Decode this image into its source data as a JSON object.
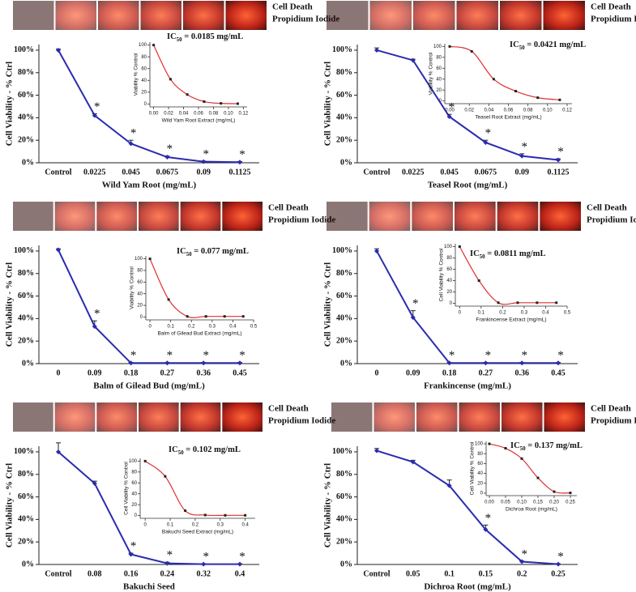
{
  "strip_label": [
    "Cell Death",
    "Propidium Iodide"
  ],
  "chart_data": [
    {
      "type": "line",
      "ylabel": "Cell Viability - % Ctrl",
      "xlabel": "Wild Yam Root (mg/mL)",
      "color": "#2b2bb0",
      "categories": [
        "Control",
        "0.0225",
        "0.045",
        "0.0675",
        "0.09",
        "0.1125"
      ],
      "values": [
        100,
        42,
        17,
        5,
        1,
        0.5
      ],
      "errors": [
        1,
        1.5,
        3,
        1,
        0.5,
        0.5
      ],
      "significance": [
        null,
        "*",
        "*",
        "*",
        "*",
        "*"
      ],
      "ylim": [
        0,
        105
      ],
      "yticks": [
        {
          "value": 0,
          "label": "0%"
        },
        {
          "value": 20,
          "label": "20%"
        },
        {
          "value": 40,
          "label": "40%"
        },
        {
          "value": 60,
          "label": "60%"
        },
        {
          "value": 80,
          "label": "80%"
        },
        {
          "value": 100,
          "label": "100%"
        }
      ],
      "inset": {
        "type": "line",
        "ylabel": "Viability % Control",
        "xlabel": "Wild Yam Root Extract (mg/mL)",
        "ic50_prefix": "IC",
        "ic50_sub": "50",
        "ic50_text": " = 0.0185 mg/mL",
        "color": "#e03030",
        "x": [
          0,
          0.0225,
          0.045,
          0.0675,
          0.09,
          0.1125
        ],
        "values": [
          100,
          42,
          16,
          4,
          1,
          0.5
        ],
        "xlim": [
          -0.005,
          0.125
        ],
        "ylim": [
          -5,
          105
        ],
        "xticks": [
          {
            "value": 0,
            "label": "0.00"
          },
          {
            "value": 0.02,
            "label": "0.02"
          },
          {
            "value": 0.04,
            "label": "0.04"
          },
          {
            "value": 0.06,
            "label": "0.06"
          },
          {
            "value": 0.08,
            "label": "0.08"
          },
          {
            "value": 0.1,
            "label": "0.10"
          },
          {
            "value": 0.12,
            "label": "0.12"
          }
        ],
        "yticks": [
          0,
          20,
          40,
          60,
          80,
          100
        ]
      }
    },
    {
      "type": "line",
      "ylabel": "Cell Viability - % Ctrl",
      "xlabel": "Teasel Root (mg/mL)",
      "color": "#2b2bb0",
      "categories": [
        "Control",
        "0.0225",
        "0.045",
        "0.0675",
        "0.09",
        "0.1125"
      ],
      "values": [
        100,
        91,
        41,
        18,
        6,
        2.5
      ],
      "errors": [
        2,
        1,
        2,
        2,
        2,
        1
      ],
      "significance": [
        null,
        null,
        "*",
        "*",
        "*",
        "*"
      ],
      "ylim": [
        0,
        105
      ],
      "yticks": [
        {
          "value": 0,
          "label": "0%"
        },
        {
          "value": 20,
          "label": "20%"
        },
        {
          "value": 40,
          "label": "40%"
        },
        {
          "value": 60,
          "label": "60%"
        },
        {
          "value": 80,
          "label": "80%"
        },
        {
          "value": 100,
          "label": "100%"
        }
      ],
      "inset": {
        "type": "line",
        "ylabel": "Viability % Control",
        "xlabel": "Teasel Root Extract (mg/mL)",
        "ic50_prefix": "IC",
        "ic50_sub": "50",
        "ic50_text": " = 0.0421 mg/mL",
        "color": "#e03030",
        "x": [
          0,
          0.0225,
          0.045,
          0.0675,
          0.09,
          0.1125
        ],
        "values": [
          100,
          91,
          40,
          18,
          6,
          2
        ],
        "xlim": [
          -0.005,
          0.125
        ],
        "ylim": [
          -5,
          105
        ],
        "xticks": [
          {
            "value": 0,
            "label": "0.00"
          },
          {
            "value": 0.02,
            "label": "0.02"
          },
          {
            "value": 0.04,
            "label": "0.04"
          },
          {
            "value": 0.06,
            "label": "0.06"
          },
          {
            "value": 0.08,
            "label": "0.08"
          },
          {
            "value": 0.1,
            "label": "0.10"
          },
          {
            "value": 0.12,
            "label": "0.12"
          }
        ],
        "yticks": [
          0,
          20,
          40,
          60,
          80,
          100
        ]
      }
    },
    {
      "type": "line",
      "ylabel": "Cell Viability - % Ctrl",
      "xlabel": "Balm of Gilead Bud (mg/mL)",
      "color": "#2b2bb0",
      "categories": [
        "0",
        "0.09",
        "0.18",
        "0.27",
        "0.36",
        "0.45"
      ],
      "values": [
        101,
        33,
        0.5,
        0.5,
        0.5,
        0.5
      ],
      "errors": [
        1,
        5,
        0.5,
        0.5,
        0.5,
        0.5
      ],
      "significance": [
        null,
        "*",
        "*",
        "*",
        "*",
        "*"
      ],
      "ylim": [
        0,
        105
      ],
      "yticks": [
        {
          "value": 0,
          "label": "0%"
        },
        {
          "value": 20,
          "label": "20%"
        },
        {
          "value": 40,
          "label": "40%"
        },
        {
          "value": 60,
          "label": "60%"
        },
        {
          "value": 80,
          "label": "80%"
        },
        {
          "value": 100,
          "label": "100%"
        }
      ],
      "inset": {
        "type": "line",
        "ylabel": "Viability % Control",
        "xlabel": "Balm of Gilead Bud Extract (mg/mL)",
        "ic50_prefix": "IC",
        "ic50_sub": "50",
        "ic50_text": " = 0.077 mg/mL",
        "color": "#e03030",
        "x": [
          0,
          0.09,
          0.18,
          0.27,
          0.36,
          0.45
        ],
        "values": [
          100,
          30,
          1,
          1,
          1,
          1
        ],
        "xlim": [
          -0.02,
          0.5
        ],
        "ylim": [
          -5,
          105
        ],
        "xticks": [
          0,
          0.1,
          0.2,
          0.3,
          0.4,
          0.5
        ],
        "yticks": [
          0,
          20,
          40,
          60,
          80,
          100
        ]
      }
    },
    {
      "type": "line",
      "ylabel": "Cell Viability - % Ctrl",
      "xlabel": "Frankincense (mg/mL)",
      "color": "#2b2bb0",
      "categories": [
        "0",
        "0.09",
        "0.18",
        "0.27",
        "0.36",
        "0.45"
      ],
      "values": [
        100,
        41,
        0.5,
        0.5,
        0.5,
        0.5
      ],
      "errors": [
        2,
        6,
        0.5,
        0.5,
        0.5,
        0.5
      ],
      "significance": [
        null,
        "*",
        "*",
        "*",
        "*",
        "*"
      ],
      "ylim": [
        0,
        105
      ],
      "yticks": [
        {
          "value": 0,
          "label": "0%"
        },
        {
          "value": 20,
          "label": "20%"
        },
        {
          "value": 40,
          "label": "40%"
        },
        {
          "value": 60,
          "label": "60%"
        },
        {
          "value": 80,
          "label": "80%"
        },
        {
          "value": 100,
          "label": "100%"
        }
      ],
      "inset": {
        "type": "line",
        "ylabel": "Cell Viability % Control",
        "xlabel": "Frankincense Extract (mg/mL)",
        "ic50_prefix": "IC",
        "ic50_sub": "50",
        "ic50_text": " = 0.0811 mg/mL",
        "color": "#e03030",
        "x": [
          0,
          0.09,
          0.18,
          0.27,
          0.36,
          0.45
        ],
        "values": [
          100,
          40,
          1,
          1,
          1,
          1
        ],
        "xlim": [
          -0.02,
          0.5
        ],
        "ylim": [
          -5,
          105
        ],
        "xticks": [
          0,
          0.1,
          0.2,
          0.3,
          0.4,
          0.5
        ],
        "yticks": [
          0,
          20,
          40,
          60,
          80,
          100
        ]
      }
    },
    {
      "type": "line",
      "ylabel": "Cell Viability - % Ctrl",
      "xlabel": "Bakuchi Seed",
      "color": "#2b2bb0",
      "categories": [
        "Control",
        "0.08",
        "0.16",
        "0.24",
        "0.32",
        "0.4"
      ],
      "values": [
        100,
        72,
        9,
        1,
        0.3,
        0.3
      ],
      "errors": [
        8,
        2,
        1,
        1,
        0.3,
        0.3
      ],
      "significance": [
        null,
        null,
        "*",
        "*",
        "*",
        "*"
      ],
      "ylim": [
        0,
        105
      ],
      "yticks": [
        {
          "value": 0,
          "label": "0%"
        },
        {
          "value": 20,
          "label": "20%"
        },
        {
          "value": 40,
          "label": "40%"
        },
        {
          "value": 60,
          "label": "60%"
        },
        {
          "value": 80,
          "label": "80%"
        },
        {
          "value": 100,
          "label": "100%"
        }
      ],
      "inset": {
        "type": "line",
        "ylabel": "Cell Viability % Control",
        "xlabel": "Bakuchi Seed Extract (mg/mL)",
        "ic50_prefix": "IC",
        "ic50_sub": "50",
        "ic50_text": " = 0.102 mg/mL",
        "color": "#e03030",
        "x": [
          0,
          0.08,
          0.16,
          0.24,
          0.32,
          0.4
        ],
        "values": [
          100,
          72,
          9,
          1,
          0.5,
          0.5
        ],
        "xlim": [
          -0.02,
          0.44
        ],
        "ylim": [
          -5,
          105
        ],
        "xticks": [
          0,
          0.1,
          0.2,
          0.3,
          0.4
        ],
        "yticks": [
          0,
          20,
          40,
          60,
          80,
          100
        ]
      }
    },
    {
      "type": "line",
      "ylabel": "Cell Viability - % Ctrl",
      "xlabel": "Dichroa Root (mg/mL)",
      "color": "#2b2bb0",
      "categories": [
        "Control",
        "0.05",
        "0.1",
        "0.15",
        "0.2",
        "0.25"
      ],
      "values": [
        101,
        91,
        70,
        31,
        2.5,
        0.3
      ],
      "errors": [
        2,
        1.5,
        5,
        4,
        0.5,
        0.3
      ],
      "significance": [
        null,
        null,
        null,
        "*",
        "*",
        "*"
      ],
      "ylim": [
        0,
        105
      ],
      "yticks": [
        {
          "value": 0,
          "label": "0%"
        },
        {
          "value": 20,
          "label": "20%"
        },
        {
          "value": 40,
          "label": "40%"
        },
        {
          "value": 60,
          "label": "60%"
        },
        {
          "value": 80,
          "label": "80%"
        },
        {
          "value": 100,
          "label": "100%"
        }
      ],
      "inset": {
        "type": "line",
        "ylabel": "Cell Viability % Control",
        "xlabel": "Dichroa Root (mg/mL)",
        "ic50_prefix": "IC",
        "ic50_sub": "50",
        "ic50_text": " = 0.137 mg/mL",
        "color": "#e03030",
        "x": [
          0,
          0.05,
          0.1,
          0.15,
          0.2,
          0.25
        ],
        "values": [
          100,
          91,
          70,
          31,
          3,
          0.5
        ],
        "xlim": [
          -0.01,
          0.27
        ],
        "ylim": [
          -5,
          105
        ],
        "xticks": [
          {
            "value": 0,
            "label": "0.00"
          },
          {
            "value": 0.05,
            "label": "0.05"
          },
          {
            "value": 0.1,
            "label": "0.10"
          },
          {
            "value": 0.15,
            "label": "0.15"
          },
          {
            "value": 0.2,
            "label": "0.20"
          },
          {
            "value": 0.25,
            "label": "0.25"
          }
        ],
        "yticks": [
          0,
          20,
          40,
          60,
          80,
          100
        ]
      }
    }
  ]
}
